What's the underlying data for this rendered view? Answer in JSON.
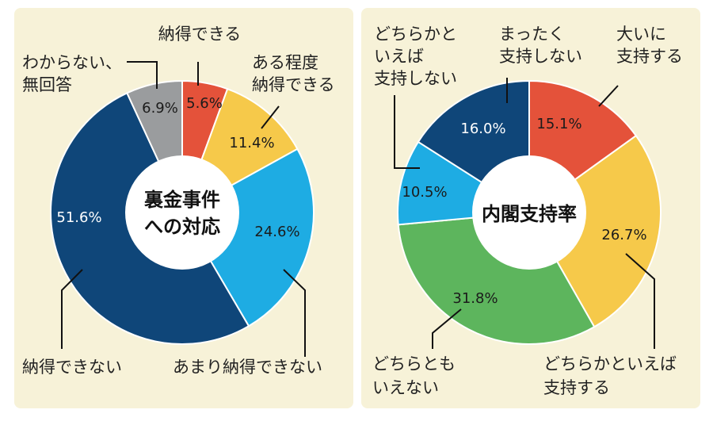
{
  "chart_data": [
    {
      "type": "pie",
      "center_label": [
        "裏金事件",
        "への対応"
      ],
      "series": [
        {
          "label": "納得できる",
          "value": 5.6,
          "value_label": "5.6%",
          "color": "#e4523a"
        },
        {
          "label": "ある程度納得できる",
          "value": 11.4,
          "value_label": "11.4%",
          "color": "#f6c94a"
        },
        {
          "label": "あまり納得できない",
          "value": 24.6,
          "value_label": "24.6%",
          "color": "#1eace3"
        },
        {
          "label": "納得できない",
          "value": 51.6,
          "value_label": "51.6%",
          "color": "#0f4679"
        },
        {
          "label": "わからない、無回答",
          "value": 6.9,
          "value_label": "6.9%",
          "color": "#9a9c9e"
        }
      ]
    },
    {
      "type": "pie",
      "center_label": [
        "内閣支持率"
      ],
      "series": [
        {
          "label": "大いに支持する",
          "value": 15.1,
          "value_label": "15.1%",
          "color": "#e4523a"
        },
        {
          "label": "どちらかといえば支持する",
          "value": 26.7,
          "value_label": "26.7%",
          "color": "#f6c94a"
        },
        {
          "label": "どちらともいえない",
          "value": 31.8,
          "value_label": "31.8%",
          "color": "#5db55d"
        },
        {
          "label": "どちらかといえば支持しない",
          "value": 10.5,
          "value_label": "10.5%",
          "color": "#1eace3"
        },
        {
          "label": "まったく支持しない",
          "value": 16.0,
          "value_label": "16.0%",
          "color": "#0f4679"
        }
      ]
    }
  ],
  "labels": {
    "left": {
      "l0": "納得できる",
      "l1a": "ある程度",
      "l1b": "納得できる",
      "l2": "あまり納得できない",
      "l3": "納得できない",
      "l4a": "わからない、",
      "l4b": "無回答"
    },
    "right": {
      "r0a": "大いに",
      "r0b": "支持する",
      "r1a": "どちらかといえば",
      "r1b": "支持する",
      "r2a": "どちらとも",
      "r2b": "いえない",
      "r3a": "どちらかと",
      "r3b": "いえば",
      "r3c": "支持しない",
      "r4a": "まったく",
      "r4b": "支持しない"
    }
  }
}
